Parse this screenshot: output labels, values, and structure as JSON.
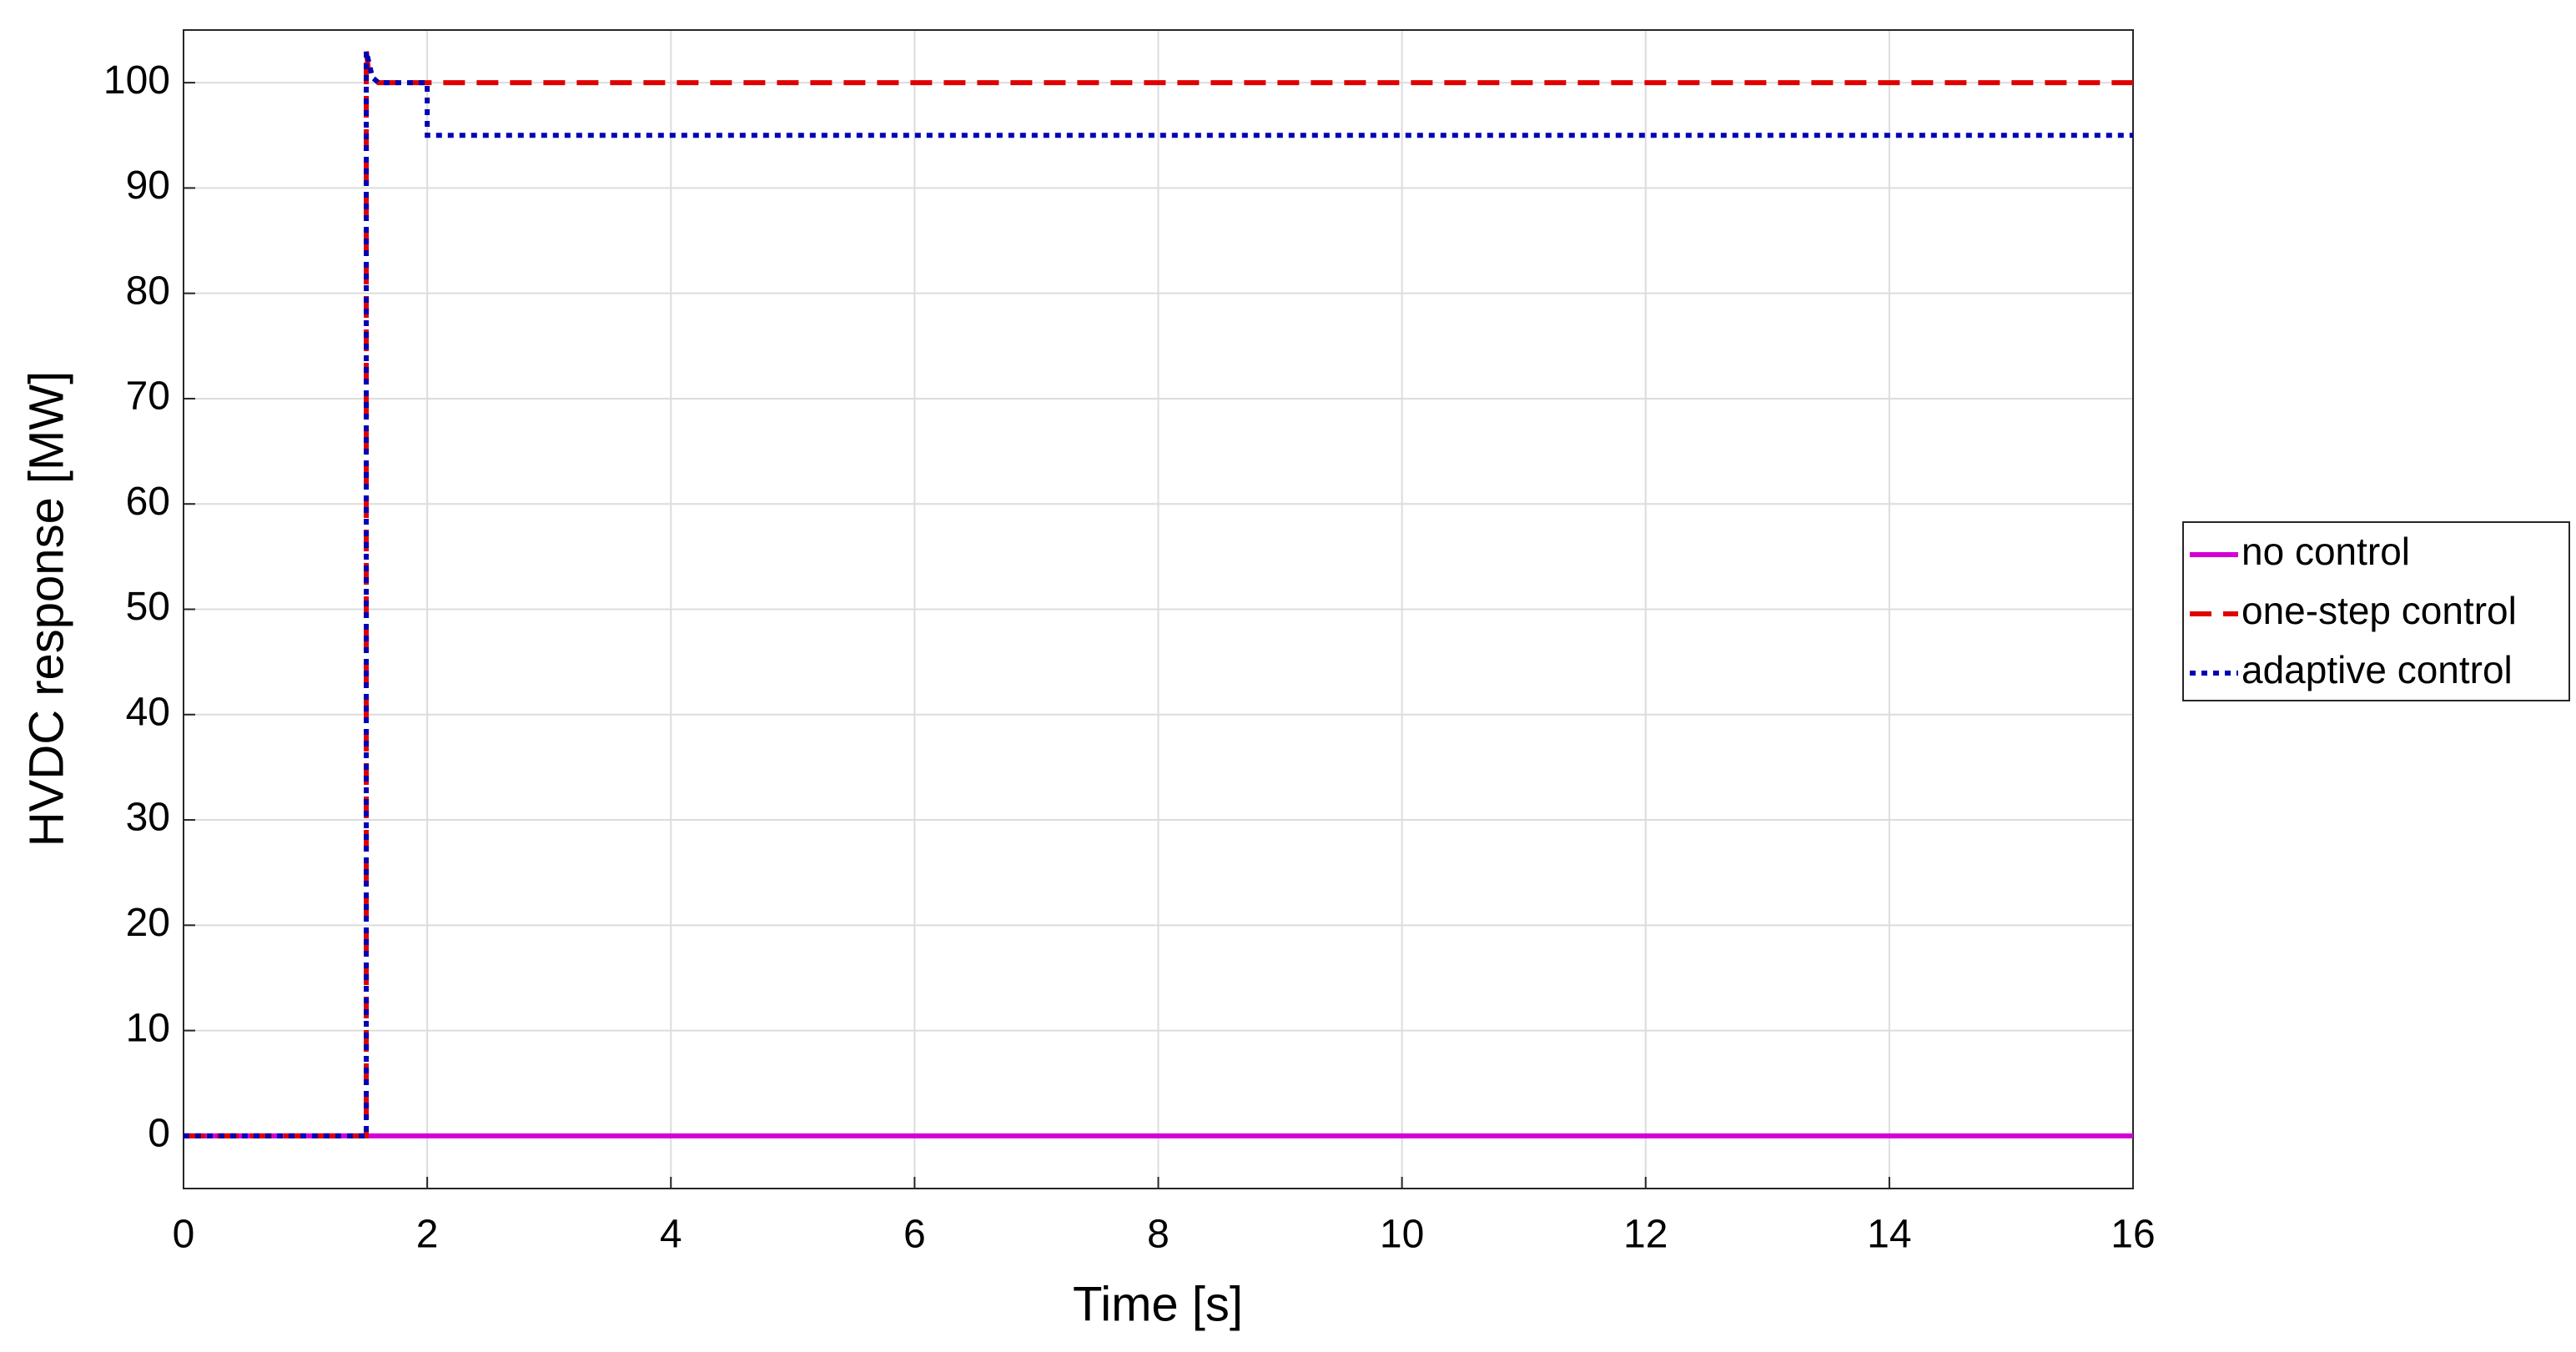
{
  "chart_data": {
    "type": "line",
    "xlabel": "Time [s]",
    "ylabel": "HVDC response [MW]",
    "xlim": [
      0,
      16
    ],
    "ylim": [
      -5,
      105
    ],
    "xticks": [
      0,
      2,
      4,
      6,
      8,
      10,
      12,
      14,
      16
    ],
    "yticks": [
      0,
      10,
      20,
      30,
      40,
      50,
      60,
      70,
      80,
      90,
      100
    ],
    "grid": true,
    "legend": "east-outside",
    "series": [
      {
        "name": "no control",
        "color": "#d400d4",
        "linestyle": "solid",
        "x": [
          0,
          16
        ],
        "values": [
          0,
          0
        ]
      },
      {
        "name": "one-step control",
        "color": "#e00000",
        "linestyle": "dashed",
        "x": [
          0,
          1.5,
          1.5,
          1.52,
          1.6,
          1.7,
          16
        ],
        "values": [
          0,
          0,
          103,
          101,
          100,
          100,
          100
        ]
      },
      {
        "name": "adaptive control",
        "color": "#0000b4",
        "linestyle": "dotted",
        "x": [
          0,
          1.5,
          1.5,
          1.55,
          1.6,
          2,
          2,
          16
        ],
        "values": [
          0,
          0,
          103,
          100.5,
          100,
          100,
          95,
          95
        ]
      }
    ]
  }
}
